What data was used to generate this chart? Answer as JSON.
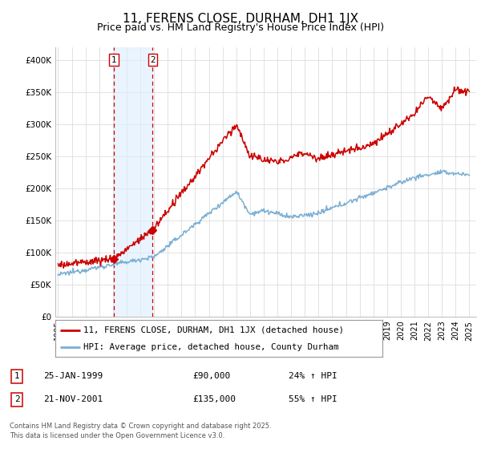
{
  "title": "11, FERENS CLOSE, DURHAM, DH1 1JX",
  "subtitle": "Price paid vs. HM Land Registry's House Price Index (HPI)",
  "ylim": [
    0,
    420000
  ],
  "xlim_start": 1994.8,
  "xlim_end": 2025.5,
  "yticks": [
    0,
    50000,
    100000,
    150000,
    200000,
    250000,
    300000,
    350000,
    400000
  ],
  "ytick_labels": [
    "£0",
    "£50K",
    "£100K",
    "£150K",
    "£200K",
    "£250K",
    "£300K",
    "£350K",
    "£400K"
  ],
  "xticks": [
    1995,
    1996,
    1997,
    1998,
    1999,
    2000,
    2001,
    2002,
    2003,
    2004,
    2005,
    2006,
    2007,
    2008,
    2009,
    2010,
    2011,
    2012,
    2013,
    2014,
    2015,
    2016,
    2017,
    2018,
    2019,
    2020,
    2021,
    2022,
    2023,
    2024,
    2025
  ],
  "purchase1_x": 1999.07,
  "purchase1_y": 90000,
  "purchase1_label": "1",
  "purchase1_date": "25-JAN-1999",
  "purchase1_price": "£90,000",
  "purchase1_hpi": "24% ↑ HPI",
  "purchase2_x": 2001.9,
  "purchase2_y": 135000,
  "purchase2_label": "2",
  "purchase2_date": "21-NOV-2001",
  "purchase2_price": "£135,000",
  "purchase2_hpi": "55% ↑ HPI",
  "line_color_property": "#cc0000",
  "line_color_hpi": "#7bafd4",
  "shading_color": "#ddeeff",
  "dashed_color": "#cc0000",
  "legend_label_property": "11, FERENS CLOSE, DURHAM, DH1 1JX (detached house)",
  "legend_label_hpi": "HPI: Average price, detached house, County Durham",
  "copyright_text": "Contains HM Land Registry data © Crown copyright and database right 2025.\nThis data is licensed under the Open Government Licence v3.0.",
  "background_color": "#ffffff",
  "grid_color": "#dddddd",
  "title_fontsize": 11,
  "subtitle_fontsize": 9
}
